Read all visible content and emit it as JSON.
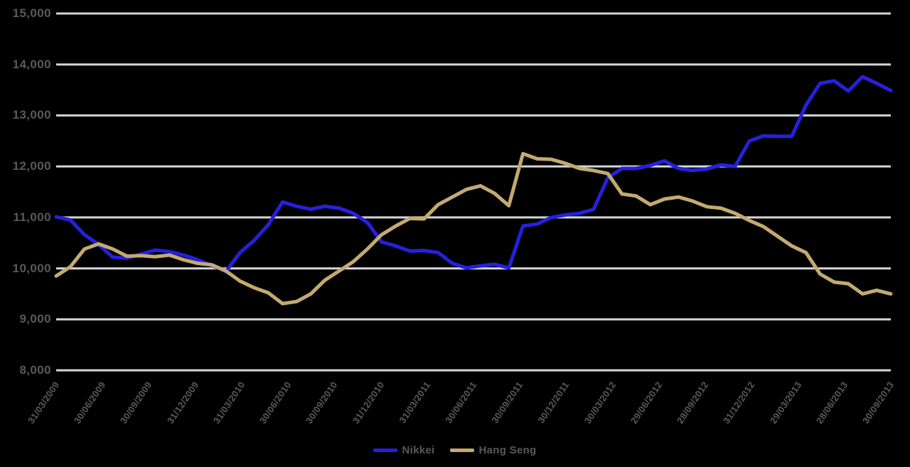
{
  "colors": {
    "background": "#000000",
    "gridline": "#d5d5d5",
    "axis_text": "#595959",
    "series1": "#2620dd",
    "series2": "#c3aa70"
  },
  "chart_data": {
    "type": "line",
    "title": "",
    "xlabel": "",
    "ylabel": "",
    "grid": "horizontal",
    "legend_position": "bottom",
    "ylim": [
      8000,
      15000
    ],
    "y_ticks": [
      "15,000",
      "14,000",
      "13,000",
      "12,000",
      "11,000",
      "10,000",
      "9,000",
      "8,000"
    ],
    "x_labels": [
      "31/03/2009",
      "30/06/2009",
      "30/09/2009",
      "31/12/2009",
      "31/03/2010",
      "30/06/2010",
      "30/09/2010",
      "31/12/2010",
      "31/03/2011",
      "30/06/2011",
      "30/09/2011",
      "30/12/2011",
      "30/03/2012",
      "29/06/2012",
      "28/09/2012",
      "31/12/2012",
      "29/03/2013",
      "28/06/2013",
      "30/09/2013"
    ],
    "series": [
      {
        "name": "Nikkei",
        "color": "#2620dd",
        "values": [
          11010,
          10950,
          10660,
          10470,
          10220,
          10200,
          10280,
          10360,
          10330,
          10260,
          10170,
          10060,
          9940,
          10310,
          10550,
          10860,
          11300,
          11220,
          11160,
          11220,
          11180,
          11080,
          10900,
          10520,
          10440,
          10340,
          10350,
          10310,
          10100,
          10010,
          10050,
          10080,
          10010,
          10830,
          10870,
          11000,
          11050,
          11080,
          11160,
          11780,
          11960,
          11960,
          12020,
          12110,
          11960,
          11920,
          11950,
          12030,
          12000,
          12500,
          12600,
          12590,
          12590,
          13200,
          13630,
          13680,
          13480,
          13760,
          13630,
          13490
        ]
      },
      {
        "name": "Hang Seng",
        "color": "#c3aa70",
        "values": [
          9850,
          10030,
          10380,
          10480,
          10380,
          10240,
          10250,
          10230,
          10260,
          10170,
          10100,
          10070,
          9950,
          9750,
          9620,
          9520,
          9310,
          9350,
          9500,
          9770,
          9950,
          10130,
          10380,
          10660,
          10830,
          10980,
          10970,
          11250,
          11400,
          11550,
          11620,
          11470,
          11230,
          12250,
          12150,
          12140,
          12060,
          11960,
          11920,
          11860,
          11460,
          11420,
          11250,
          11360,
          11400,
          11320,
          11210,
          11180,
          11080,
          10940,
          10820,
          10630,
          10440,
          10310,
          9890,
          9730,
          9700,
          9500,
          9570,
          9500
        ]
      }
    ]
  },
  "legend": {
    "series1_label": "Nikkei",
    "series2_label": "Hang Seng"
  }
}
